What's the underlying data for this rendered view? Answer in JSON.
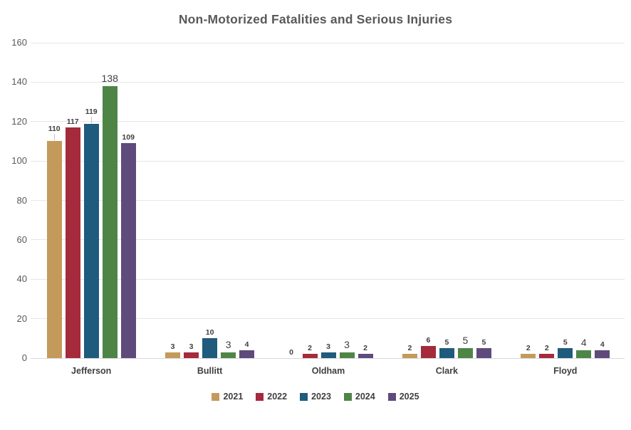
{
  "title": "Non-Motorized Fatalities and Serious Injuries",
  "chart_data": {
    "type": "bar",
    "title": "Non-Motorized Fatalities and Serious Injuries",
    "categories": [
      "Jefferson",
      "Bullitt",
      "Oldham",
      "Clark",
      "Floyd"
    ],
    "series": [
      {
        "name": "2021",
        "color": "#c49a5b",
        "values": [
          110,
          3,
          0,
          2,
          2
        ],
        "leader_indices": [
          0
        ]
      },
      {
        "name": "2022",
        "color": "#a42a3c",
        "values": [
          117,
          3,
          2,
          6,
          2
        ],
        "leader_indices": []
      },
      {
        "name": "2023",
        "color": "#1f5b7c",
        "values": [
          119,
          10,
          3,
          5,
          5
        ],
        "leader_indices": [
          0
        ]
      },
      {
        "name": "2024",
        "color": "#4e8547",
        "values": [
          138,
          3,
          3,
          5,
          4
        ],
        "leader_indices": [],
        "large_labels": true
      },
      {
        "name": "2025",
        "color": "#5e4b7c",
        "values": [
          109,
          4,
          2,
          5,
          4
        ],
        "leader_indices": []
      }
    ],
    "ylabel": "",
    "xlabel": "",
    "ylim": [
      0,
      160
    ],
    "ytick_step": 20,
    "ytick_labels": [
      "0",
      "20",
      "40",
      "60",
      "80",
      "100",
      "120",
      "140",
      "160"
    ],
    "grid": true,
    "data_labels": true,
    "legend_position": "bottom",
    "legend_entries": [
      "2021",
      "2022",
      "2023",
      "2024",
      "2025"
    ]
  },
  "colors": {
    "background": "#ffffff",
    "title_text": "#595959",
    "axis_text": "#595959",
    "label_text": "#3f3f3f",
    "gridline": "#e6e6eb",
    "axis_line": "#d9d9de"
  }
}
